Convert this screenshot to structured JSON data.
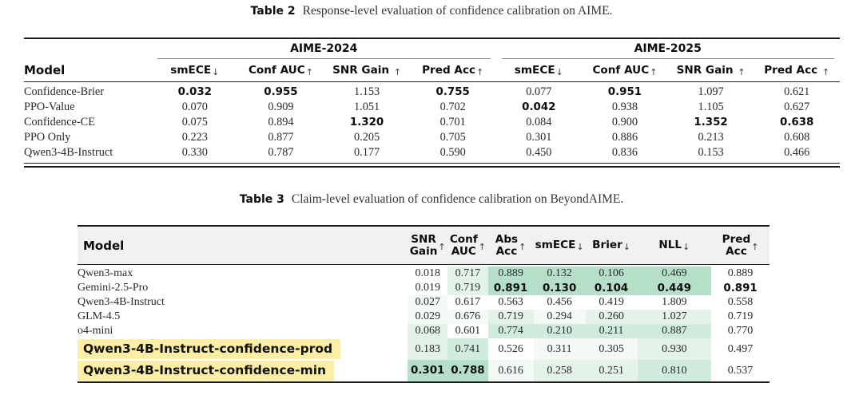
{
  "colors": {
    "shade_levels": [
      "transparent",
      "#f3faf6",
      "#e4f3ea",
      "#cfecdc",
      "#b5dfc8"
    ],
    "highlight_yellow": "#fceea3",
    "header_gray": "#f1f1f1"
  },
  "table2": {
    "caption_label": "Table 2",
    "caption_text": "Response-level evaluation of confidence calibration on AIME.",
    "model_header": "Model",
    "groups": [
      {
        "label": "AIME-2024"
      },
      {
        "label": "AIME-2025"
      }
    ],
    "columns": [
      {
        "label": "smECE",
        "arrow": "↓"
      },
      {
        "label": "Conf AUC",
        "arrow": "↑"
      },
      {
        "label": "SNR Gain",
        "arrow": "↑"
      },
      {
        "label": "Pred Acc",
        "arrow": "↑"
      },
      {
        "label": "smECE",
        "arrow": "↓"
      },
      {
        "label": "Conf AUC",
        "arrow": "↑"
      },
      {
        "label": "SNR Gain",
        "arrow": "↑"
      },
      {
        "label": "Pred Acc",
        "arrow": "↑"
      }
    ],
    "rows": [
      {
        "model": "Confidence-Brier",
        "values": [
          "0.032",
          "0.955",
          "1.153",
          "0.755",
          "0.077",
          "0.951",
          "1.097",
          "0.621"
        ],
        "bold": [
          true,
          true,
          false,
          true,
          false,
          true,
          false,
          false
        ]
      },
      {
        "model": "PPO-Value",
        "values": [
          "0.070",
          "0.909",
          "1.051",
          "0.702",
          "0.042",
          "0.938",
          "1.105",
          "0.627"
        ],
        "bold": [
          false,
          false,
          false,
          false,
          true,
          false,
          false,
          false
        ]
      },
      {
        "model": "Confidence-CE",
        "values": [
          "0.075",
          "0.894",
          "1.320",
          "0.701",
          "0.084",
          "0.900",
          "1.352",
          "0.638"
        ],
        "bold": [
          false,
          false,
          true,
          false,
          false,
          false,
          true,
          true
        ]
      },
      {
        "model": "PPO Only",
        "values": [
          "0.223",
          "0.877",
          "0.205",
          "0.705",
          "0.301",
          "0.886",
          "0.213",
          "0.608"
        ],
        "bold": [
          false,
          false,
          false,
          false,
          false,
          false,
          false,
          false
        ]
      },
      {
        "model": "Qwen3-4B-Instruct",
        "values": [
          "0.330",
          "0.787",
          "0.177",
          "0.590",
          "0.450",
          "0.836",
          "0.153",
          "0.466"
        ],
        "bold": [
          false,
          false,
          false,
          false,
          false,
          false,
          false,
          false
        ]
      }
    ]
  },
  "table3": {
    "caption_label": "Table 3",
    "caption_text": "Claim-level evaluation of confidence calibration on BeyondAIME.",
    "model_header": "Model",
    "columns": [
      {
        "line1": "SNR",
        "line2": "Gain",
        "arrow": "↑"
      },
      {
        "line1": "Conf",
        "line2": "AUC",
        "arrow": "↑"
      },
      {
        "line1": "Abs",
        "line2": "Acc",
        "arrow": "↑"
      },
      {
        "line1": "smECE",
        "line2": "",
        "arrow": "↓"
      },
      {
        "line1": "Brier",
        "line2": "",
        "arrow": "↓"
      },
      {
        "line1": "NLL",
        "line2": "",
        "arrow": "↓"
      },
      {
        "line1": "Pred",
        "line2": "Acc",
        "arrow": "↑"
      }
    ],
    "rows": [
      {
        "model": "Qwen3-max",
        "highlight": false,
        "values": [
          "0.018",
          "0.717",
          "0.889",
          "0.132",
          "0.106",
          "0.469",
          "0.889"
        ],
        "bold": [
          false,
          false,
          false,
          false,
          false,
          false,
          false
        ],
        "shade": [
          0,
          2,
          4,
          4,
          4,
          4,
          0
        ]
      },
      {
        "model": "Gemini-2.5-Pro",
        "highlight": false,
        "values": [
          "0.019",
          "0.719",
          "0.891",
          "0.130",
          "0.104",
          "0.449",
          "0.891"
        ],
        "bold": [
          false,
          false,
          true,
          true,
          true,
          true,
          true
        ],
        "shade": [
          0,
          2,
          4,
          4,
          4,
          4,
          0
        ]
      },
      {
        "model": "Qwen3-4B-Instruct",
        "highlight": false,
        "values": [
          "0.027",
          "0.617",
          "0.563",
          "0.456",
          "0.419",
          "1.809",
          "0.558"
        ],
        "bold": [
          false,
          false,
          false,
          false,
          false,
          false,
          false
        ],
        "shade": [
          1,
          0,
          0,
          0,
          0,
          0,
          0
        ]
      },
      {
        "model": "GLM-4.5",
        "highlight": false,
        "values": [
          "0.029",
          "0.676",
          "0.719",
          "0.294",
          "0.260",
          "1.027",
          "0.719"
        ],
        "bold": [
          false,
          false,
          false,
          false,
          false,
          false,
          false
        ],
        "shade": [
          1,
          1,
          2,
          1,
          2,
          2,
          0
        ]
      },
      {
        "model": "o4-mini",
        "highlight": false,
        "values": [
          "0.068",
          "0.601",
          "0.774",
          "0.210",
          "0.211",
          "0.887",
          "0.770"
        ],
        "bold": [
          false,
          false,
          false,
          false,
          false,
          false,
          false
        ],
        "shade": [
          2,
          0,
          3,
          3,
          3,
          3,
          0
        ]
      },
      {
        "model": "Qwen3-4B-Instruct-confidence-prod",
        "highlight": true,
        "values": [
          "0.183",
          "0.741",
          "0.526",
          "0.311",
          "0.305",
          "0.930",
          "0.497"
        ],
        "bold": [
          false,
          false,
          false,
          false,
          false,
          false,
          false
        ],
        "shade": [
          2,
          3,
          0,
          1,
          1,
          2,
          0
        ]
      },
      {
        "model": "Qwen3-4B-Instruct-confidence-min",
        "highlight": true,
        "values": [
          "0.301",
          "0.788",
          "0.616",
          "0.258",
          "0.251",
          "0.810",
          "0.537"
        ],
        "bold": [
          true,
          true,
          false,
          false,
          false,
          false,
          false
        ],
        "shade": [
          4,
          4,
          1,
          2,
          2,
          3,
          0
        ]
      }
    ]
  }
}
